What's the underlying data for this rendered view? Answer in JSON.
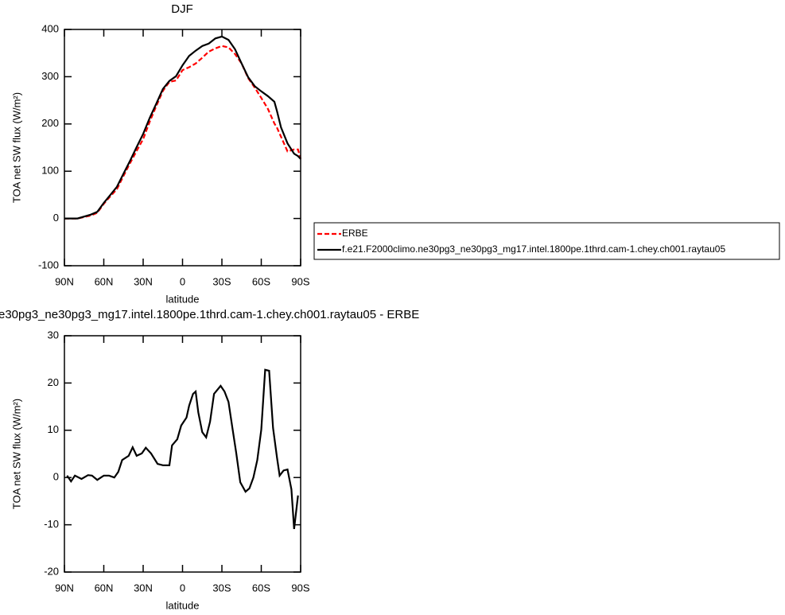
{
  "chart_data": [
    {
      "type": "line",
      "title": "DJF",
      "x_label": "latitude",
      "y_label": "TOA net SW flux (W/m²)",
      "x": [
        90,
        80,
        70,
        65,
        60,
        55,
        50,
        45,
        40,
        35,
        30,
        25,
        20,
        15,
        10,
        5,
        0,
        -5,
        -10,
        -15,
        -20,
        -25,
        -30,
        -35,
        -40,
        -45,
        -50,
        -55,
        -60,
        -65,
        -70,
        -72,
        -75,
        -80,
        -85,
        -88,
        -90
      ],
      "series": [
        {
          "name": "ERBE",
          "color": "#ff0000",
          "line_style": "dashed",
          "values": [
            0,
            0,
            6,
            12,
            31,
            47,
            62,
            90,
            117,
            143,
            168,
            205,
            238,
            270,
            289,
            292,
            314,
            320,
            328,
            340,
            353,
            360,
            365,
            362,
            348,
            328,
            297,
            277,
            255,
            232,
            201,
            192,
            173,
            142,
            146,
            146,
            126
          ]
        },
        {
          "name": "f.e21.F2000climo.ne30pg3_ne30pg3_mg17.intel.1800pe.1thrd.cam-1.chey.ch001.raytau05",
          "color": "#000000",
          "line_style": "solid",
          "values": [
            0,
            0,
            8,
            14,
            33,
            50,
            67,
            95,
            122,
            151,
            179,
            213,
            243,
            274,
            291,
            301,
            324,
            344,
            355,
            365,
            370,
            381,
            385,
            378,
            358,
            328,
            299,
            280,
            269,
            259,
            247,
            227,
            193,
            159,
            137,
            132,
            126
          ]
        }
      ],
      "xlim": [
        90,
        -90
      ],
      "xticks": [
        {
          "value": 90,
          "label": "90N"
        },
        {
          "value": 60,
          "label": "60N"
        },
        {
          "value": 30,
          "label": "30N"
        },
        0,
        {
          "value": -30,
          "label": "30S"
        },
        {
          "value": -60,
          "label": "60S"
        },
        {
          "value": -90,
          "label": "90S"
        }
      ],
      "ylim": [
        -100,
        400
      ],
      "yticks": [
        -100,
        0,
        100,
        200,
        300,
        400
      ]
    },
    {
      "type": "line",
      "title": "e30pg3_ne30pg3_mg17.intel.1800pe.1thrd.cam-1.chey.ch001.raytau05 - ERBE",
      "x_label": "latitude",
      "y_label": "TOA net SW flux (W/m²)",
      "x": [
        88,
        85,
        82,
        77,
        72,
        69,
        65,
        60,
        56,
        52,
        49,
        46,
        41,
        38,
        35,
        31,
        28,
        24,
        19,
        15,
        10,
        8,
        4,
        1,
        -3,
        -5,
        -8,
        -10,
        -12,
        -15,
        -18,
        -21,
        -24,
        -29,
        -32,
        -35,
        -38,
        -41,
        -44,
        -48,
        -51,
        -54,
        -57,
        -60,
        -63,
        -66,
        -69,
        -72,
        -74,
        -77,
        -80,
        -83,
        -85,
        -88
      ],
      "series": [
        {
          "color": "#000000",
          "line_style": "solid",
          "values": [
            0.4,
            -0.8,
            0.4,
            -0.3,
            0.5,
            0.4,
            -0.5,
            0.4,
            0.4,
            0,
            1.2,
            3.7,
            4.6,
            6.4,
            4.6,
            5.1,
            6.3,
            5.1,
            2.9,
            2.6,
            2.6,
            6.8,
            8.1,
            11,
            12.7,
            15.2,
            17.7,
            18.2,
            13.8,
            9.6,
            8.5,
            11.8,
            17.7,
            19.4,
            18.2,
            16,
            10.5,
            5.1,
            -1,
            -3,
            -2.3,
            0,
            3.7,
            10.1,
            22.8,
            22.6,
            10.5,
            4.2,
            0.4,
            1.5,
            1.7,
            -2.5,
            -10.9,
            -3.8
          ]
        }
      ],
      "xlim": [
        90,
        -90
      ],
      "xticks": [
        {
          "value": 90,
          "label": "90N"
        },
        {
          "value": 60,
          "label": "60N"
        },
        {
          "value": 30,
          "label": "30N"
        },
        0,
        {
          "value": -30,
          "label": "30S"
        },
        {
          "value": -60,
          "label": "60S"
        },
        {
          "value": -90,
          "label": "90S"
        }
      ],
      "ylim": [
        -20,
        30
      ],
      "yticks": [
        -20,
        -10,
        0,
        10,
        20,
        30
      ]
    }
  ]
}
